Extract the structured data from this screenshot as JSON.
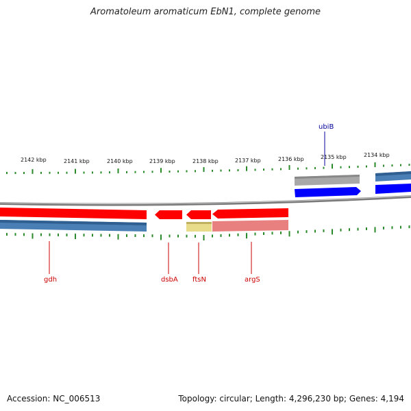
{
  "title": "Aromatoleum aromaticum EbN1, complete genome",
  "footer": {
    "accession": "Accession: NC_006513",
    "stats": "Topology: circular; Length: 4,296,230 bp; Genes: 4,194"
  },
  "colors": {
    "backbone": "#7a7a7a",
    "tick": "#2a8a2a",
    "forward_cds": "#0000ff",
    "reverse_cds": "#ff0000",
    "gene_blue": "#4a7fb5",
    "gene_grey": "#a8a8a8",
    "gene_yellow": "#e8dc8a",
    "gene_pink": "#e88080",
    "label_red": "#cc0000",
    "label_blue": "#000099"
  },
  "scale_labels": [
    "2142 kbp",
    "2141 kbp",
    "2140 kbp",
    "2139 kbp",
    "2138 kbp",
    "2137 kbp",
    "2136 kbp",
    "2135 kbp",
    "2134 kbp"
  ],
  "genes": [
    {
      "name": "gdh",
      "strand": "reverse",
      "color": "red"
    },
    {
      "name": "dsbA",
      "strand": "reverse",
      "color": "red"
    },
    {
      "name": "ftsN",
      "strand": "reverse",
      "color": "red"
    },
    {
      "name": "argS",
      "strand": "reverse",
      "color": "red"
    },
    {
      "name": "ubiB",
      "strand": "forward",
      "color": "blue"
    }
  ]
}
